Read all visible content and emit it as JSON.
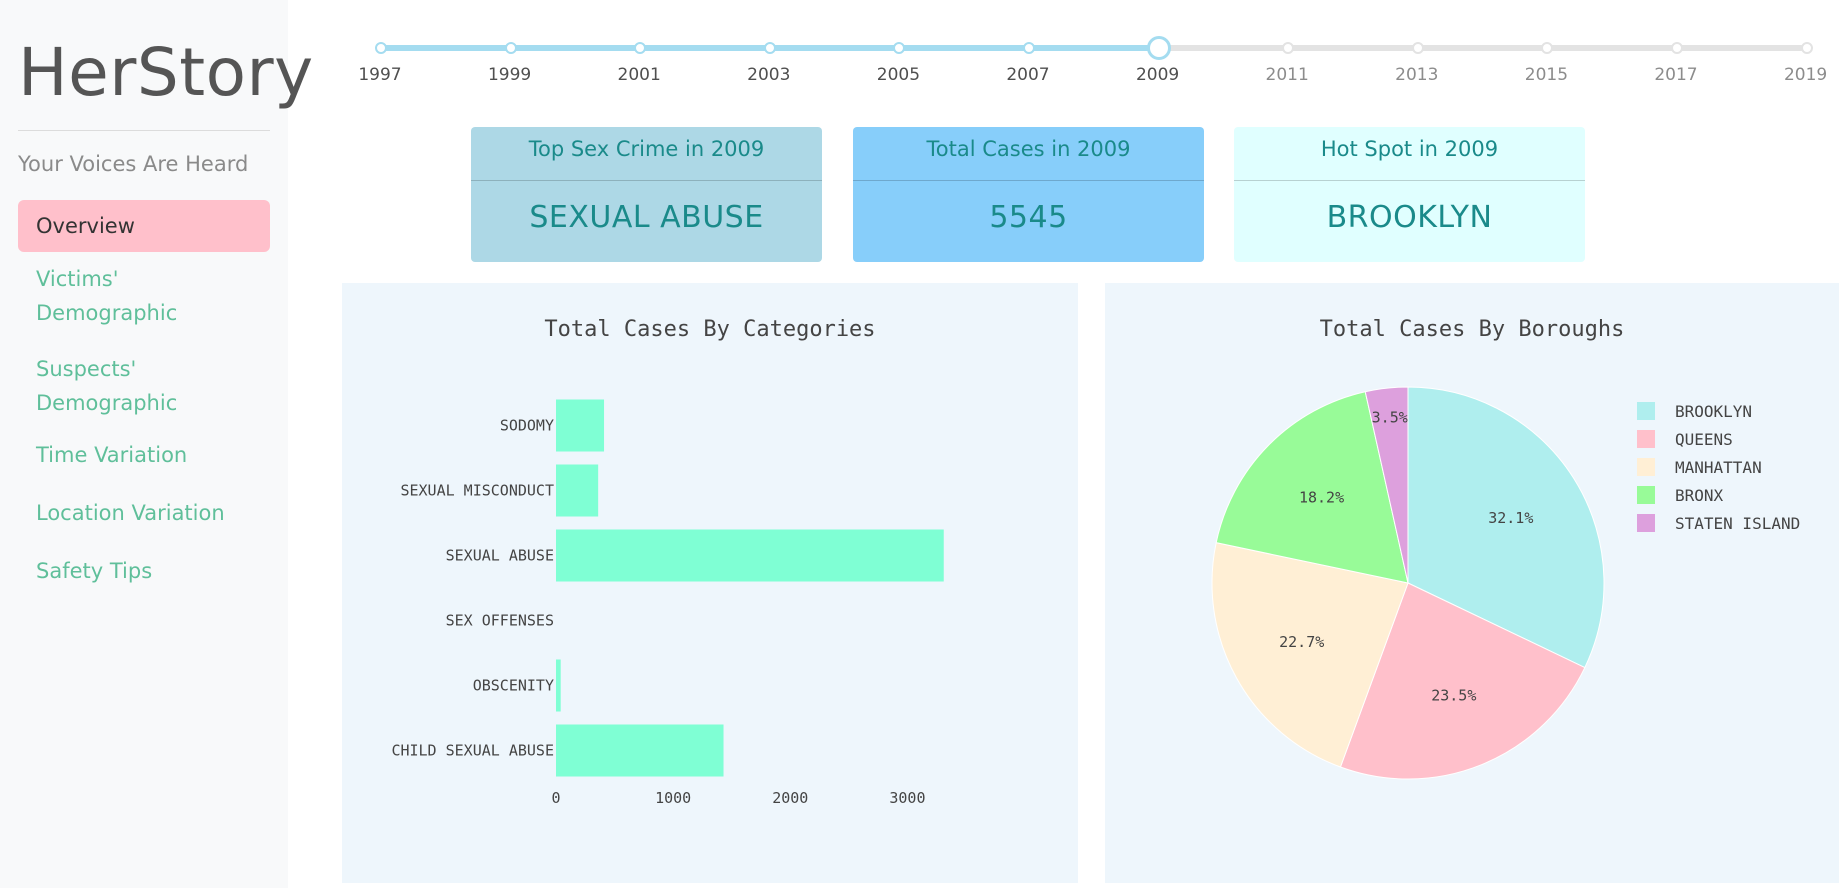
{
  "sidebar": {
    "brand": "HerStory",
    "tagline": "Your Voices Are Heard",
    "nav": [
      {
        "label": "Overview",
        "active": true
      },
      {
        "label": "Victims' Demographic"
      },
      {
        "label": "Suspects' Demographic"
      },
      {
        "label": "Time Variation"
      },
      {
        "label": "Location Variation"
      },
      {
        "label": "Safety Tips"
      }
    ]
  },
  "year_slider": {
    "marks": [
      "1997",
      "1999",
      "2001",
      "2003",
      "2005",
      "2007",
      "2009",
      "2011",
      "2013",
      "2015",
      "2017",
      "2019"
    ],
    "selected": "2009",
    "colors": {
      "active": "#a4dcf0",
      "inactive": "#e3e3e3"
    }
  },
  "cards": [
    {
      "title": "Top Sex Crime in 2009",
      "value": "SEXUAL ABUSE",
      "color": "#add8e6"
    },
    {
      "title": "Total Cases in 2009",
      "value": "5545",
      "color": "#87cefa"
    },
    {
      "title": "Hot Spot in 2009",
      "value": "BROOKLYN",
      "color": "#e0ffff"
    }
  ],
  "chart_data": [
    {
      "type": "bar",
      "orientation": "horizontal",
      "title": "Total Cases By Categories",
      "categories": [
        "SODOMY",
        "SEXUAL MISCONDUCT",
        "SEXUAL ABUSE",
        "SEX OFFENSES",
        "OBSCENITY",
        "CHILD SEXUAL ABUSE"
      ],
      "values": [
        410,
        360,
        3310,
        0,
        40,
        1430
      ],
      "xticks": [
        "0",
        "1000",
        "2000",
        "3000"
      ],
      "xlim": [
        0,
        3500
      ],
      "bar_color": "#7fffd4",
      "grid": false
    },
    {
      "type": "pie",
      "title": "Total Cases By Boroughs",
      "labels": [
        "BROOKLYN",
        "QUEENS",
        "MANHATTAN",
        "BRONX",
        "STATEN ISLAND"
      ],
      "values": [
        32.1,
        23.5,
        22.7,
        18.2,
        3.5
      ],
      "value_labels": [
        "32.1%",
        "23.5%",
        "22.7%",
        "18.2%",
        "3.5%"
      ],
      "colors": [
        "#afeeee",
        "#ffc0cb",
        "#ffefd5",
        "#98fb98",
        "#dda0dd"
      ],
      "legend_position": "top-right"
    }
  ]
}
